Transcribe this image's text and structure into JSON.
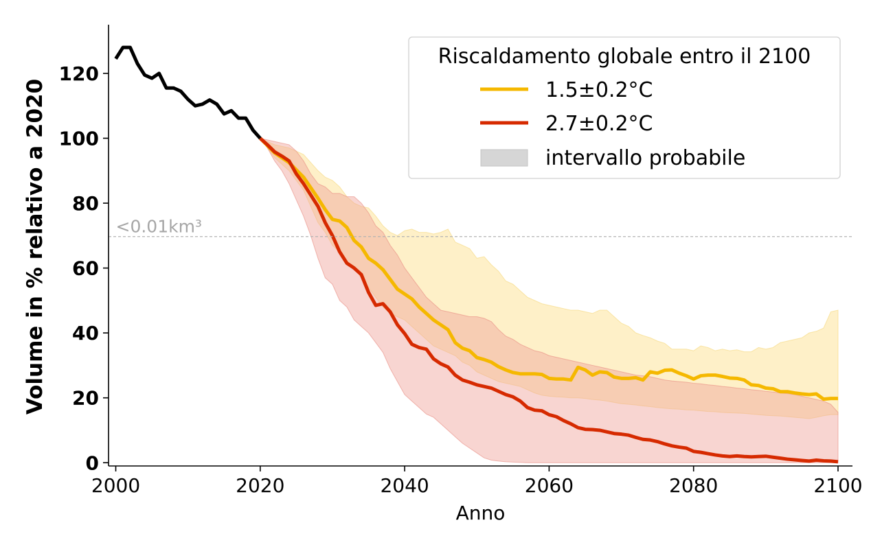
{
  "chart_data": {
    "type": "line",
    "xlabel": "Anno",
    "ylabel": "Volume in % relativo a 2020",
    "xlim": [
      1999,
      2102
    ],
    "ylim": [
      -1,
      135
    ],
    "xticks": [
      2000,
      2020,
      2040,
      2060,
      2080,
      2100
    ],
    "yticks": [
      0,
      20,
      40,
      60,
      80,
      100,
      120
    ],
    "grid": false,
    "legend": {
      "position": "top-right",
      "title": "Riscaldamento globale entro il 2100",
      "entries": [
        "1.5±0.2°C",
        "2.7±0.2°C",
        "intervallo probabile"
      ]
    },
    "threshold": {
      "y": 69.7,
      "label": "<0.01km³",
      "style": "dashed",
      "color": "#b3b3b3"
    },
    "colors": {
      "historical": "#000000",
      "s15": "#f5b800",
      "s15_band": "#fdebb5",
      "s27": "#d62a00",
      "s27_band": "#f0a29a",
      "legend_patch": "#d6d6d6"
    },
    "historical": {
      "x": [
        2000,
        2001,
        2002,
        2003,
        2004,
        2005,
        2006,
        2007,
        2008,
        2009,
        2010,
        2011,
        2012,
        2013,
        2014,
        2015,
        2016,
        2017,
        2018,
        2019,
        2020
      ],
      "y": [
        124.5,
        128,
        128,
        123,
        119.5,
        118.5,
        120,
        115.5,
        115.5,
        114.5,
        112,
        110,
        110.5,
        111.8,
        110.5,
        107.5,
        108.5,
        106.2,
        106.2,
        102.5,
        100
      ]
    },
    "series": [
      {
        "name": "1.5±0.2°C",
        "x": [
          2020,
          2022,
          2024,
          2026,
          2028,
          2029,
          2030,
          2031,
          2032,
          2033,
          2034,
          2035,
          2036,
          2037,
          2038,
          2039,
          2040,
          2041,
          2042,
          2043,
          2044,
          2045,
          2046,
          2047,
          2048,
          2049,
          2050,
          2051,
          2052,
          2053,
          2054,
          2055,
          2056,
          2057,
          2058,
          2059,
          2060,
          2061,
          2062,
          2063,
          2064,
          2065,
          2066,
          2067,
          2068,
          2069,
          2070,
          2071,
          2072,
          2073,
          2074,
          2075,
          2076,
          2077,
          2078,
          2079,
          2080,
          2081,
          2082,
          2083,
          2084,
          2085,
          2086,
          2087,
          2088,
          2089,
          2090,
          2091,
          2092,
          2093,
          2094,
          2095,
          2096,
          2097,
          2098,
          2099,
          2100
        ],
        "y": [
          100,
          95.5,
          92.5,
          88,
          81.5,
          78,
          75,
          74.5,
          72.5,
          68.5,
          66.5,
          63,
          61.5,
          59.5,
          56.5,
          53.5,
          52,
          50.5,
          48,
          46,
          44,
          42.5,
          41,
          37,
          35.3,
          34.5,
          32.4,
          31.8,
          31,
          29.6,
          28.6,
          27.8,
          27.4,
          27.4,
          27.4,
          27.2,
          26,
          25.8,
          25.8,
          25.5,
          29.4,
          28.6,
          27,
          28,
          27.8,
          26.4,
          26,
          26,
          26.2,
          25.5,
          28,
          27.6,
          28.5,
          28.6,
          27.6,
          26.8,
          25.8,
          26.8,
          27,
          27,
          26.6,
          26.1,
          26,
          25.5,
          24,
          23.8,
          23,
          22.8,
          21.9,
          21.9,
          21.5,
          21.2,
          21,
          21.2,
          19.6,
          19.8,
          19.8
        ],
        "lower": [
          100,
          94,
          90,
          84,
          74,
          71,
          67,
          65,
          62,
          60,
          57,
          54,
          51,
          48,
          46,
          45,
          44,
          42,
          40,
          38,
          36,
          35,
          34,
          33,
          31,
          30,
          28,
          27,
          26,
          25,
          24.5,
          24,
          23.5,
          22.5,
          21.5,
          20.8,
          20.5,
          20.3,
          20.2,
          20,
          20,
          19.8,
          19.5,
          19.3,
          19,
          18.6,
          18.2,
          18,
          17.8,
          17.5,
          17.3,
          17,
          16.8,
          16.6,
          16.5,
          16.3,
          16.2,
          16,
          15.8,
          15.7,
          15.5,
          15.4,
          15.3,
          15.2,
          15,
          14.8,
          14.6,
          14.5,
          14.4,
          14.2,
          14,
          13.8,
          13.6,
          14,
          14.5,
          14.8,
          14.8
        ],
        "upper": [
          100,
          98,
          97,
          95,
          90,
          88,
          87,
          85,
          82,
          80,
          79,
          78.5,
          76,
          73,
          71,
          70,
          71.5,
          72,
          71,
          71,
          70.5,
          71,
          72,
          68,
          67,
          66,
          63,
          63.5,
          61,
          59,
          56,
          55,
          53,
          51,
          50,
          49,
          48.5,
          48,
          47.5,
          47,
          47,
          46.5,
          46,
          47,
          47,
          45,
          43,
          42,
          40,
          39.2,
          38.5,
          37.5,
          36.8,
          35,
          35,
          35,
          34.5,
          36,
          35.5,
          34.5,
          35,
          34.5,
          34.8,
          34.2,
          34.2,
          35.5,
          35,
          35.5,
          37,
          37.5,
          38,
          38.5,
          40,
          40.5,
          41.5,
          46.5,
          47
        ]
      },
      {
        "name": "2.7±0.2°C",
        "x": [
          2020,
          2021,
          2022,
          2023,
          2024,
          2025,
          2026,
          2027,
          2028,
          2029,
          2030,
          2031,
          2032,
          2033,
          2034,
          2035,
          2036,
          2037,
          2038,
          2039,
          2040,
          2041,
          2042,
          2043,
          2044,
          2045,
          2046,
          2047,
          2048,
          2049,
          2050,
          2051,
          2052,
          2053,
          2054,
          2055,
          2056,
          2057,
          2058,
          2059,
          2060,
          2061,
          2062,
          2063,
          2064,
          2065,
          2066,
          2067,
          2068,
          2069,
          2070,
          2071,
          2072,
          2073,
          2074,
          2075,
          2076,
          2077,
          2078,
          2079,
          2080,
          2081,
          2082,
          2083,
          2084,
          2085,
          2086,
          2087,
          2088,
          2089,
          2090,
          2091,
          2092,
          2093,
          2094,
          2095,
          2096,
          2097,
          2098,
          2099,
          2100
        ],
        "y": [
          100,
          98,
          95.8,
          94.5,
          93,
          89,
          86,
          82.5,
          79,
          74,
          70,
          65,
          61.5,
          60,
          58,
          52.5,
          48.5,
          49,
          46.5,
          42.5,
          39.8,
          36.5,
          35.5,
          35,
          32,
          30.5,
          29.5,
          27,
          25.5,
          24.8,
          24,
          23.5,
          23,
          22,
          21,
          20.3,
          19,
          17,
          16.2,
          16,
          14.8,
          14.2,
          13,
          12,
          10.8,
          10.3,
          10.2,
          10,
          9.5,
          9,
          8.8,
          8.5,
          7.8,
          7.2,
          7,
          6.5,
          5.8,
          5.2,
          4.8,
          4.5,
          3.5,
          3.2,
          2.8,
          2.4,
          2.1,
          1.9,
          2.1,
          1.9,
          1.8,
          1.9,
          2,
          1.7,
          1.4,
          1.1,
          0.9,
          0.7,
          0.5,
          0.8,
          0.6,
          0.5,
          0.3
        ],
        "lower": [
          100,
          97,
          93,
          90,
          86,
          81,
          76,
          70,
          63,
          57,
          55,
          50,
          48,
          44,
          42,
          40,
          37,
          34,
          29,
          25,
          21,
          19,
          17,
          15,
          14,
          12,
          10,
          8,
          6,
          4.5,
          3,
          1.5,
          0.8,
          0.5,
          0.3,
          0.2,
          0.1,
          0,
          0,
          0,
          0,
          0,
          0,
          0,
          0,
          0,
          0,
          0,
          0,
          0,
          0,
          0,
          0,
          0,
          0,
          0,
          0,
          0,
          0,
          0,
          0,
          0,
          0,
          0,
          0,
          0,
          0,
          0,
          0,
          0,
          0,
          0,
          0,
          0,
          0,
          0,
          0,
          0,
          0,
          0,
          0
        ],
        "upper": [
          100,
          99.5,
          99,
          98.5,
          98,
          96,
          93,
          89,
          86,
          85,
          83,
          83,
          82,
          82,
          80,
          77,
          73,
          71,
          67,
          64,
          60,
          57,
          54,
          51,
          49,
          47,
          46.5,
          46,
          45.5,
          45,
          45,
          44.5,
          43.5,
          41,
          39,
          38,
          36.5,
          35.5,
          34.5,
          34,
          33,
          32.5,
          32,
          31.5,
          31,
          30.5,
          30,
          29.5,
          29,
          28.5,
          28,
          27.5,
          27,
          26.8,
          26.5,
          26,
          25.5,
          25.2,
          25,
          24.8,
          24.5,
          24.3,
          24,
          23.8,
          23.5,
          23.3,
          23,
          22.8,
          22.5,
          22.3,
          22,
          21.8,
          21.5,
          21.3,
          21,
          20.5,
          20,
          19.5,
          19,
          18,
          15.5
        ]
      }
    ]
  }
}
